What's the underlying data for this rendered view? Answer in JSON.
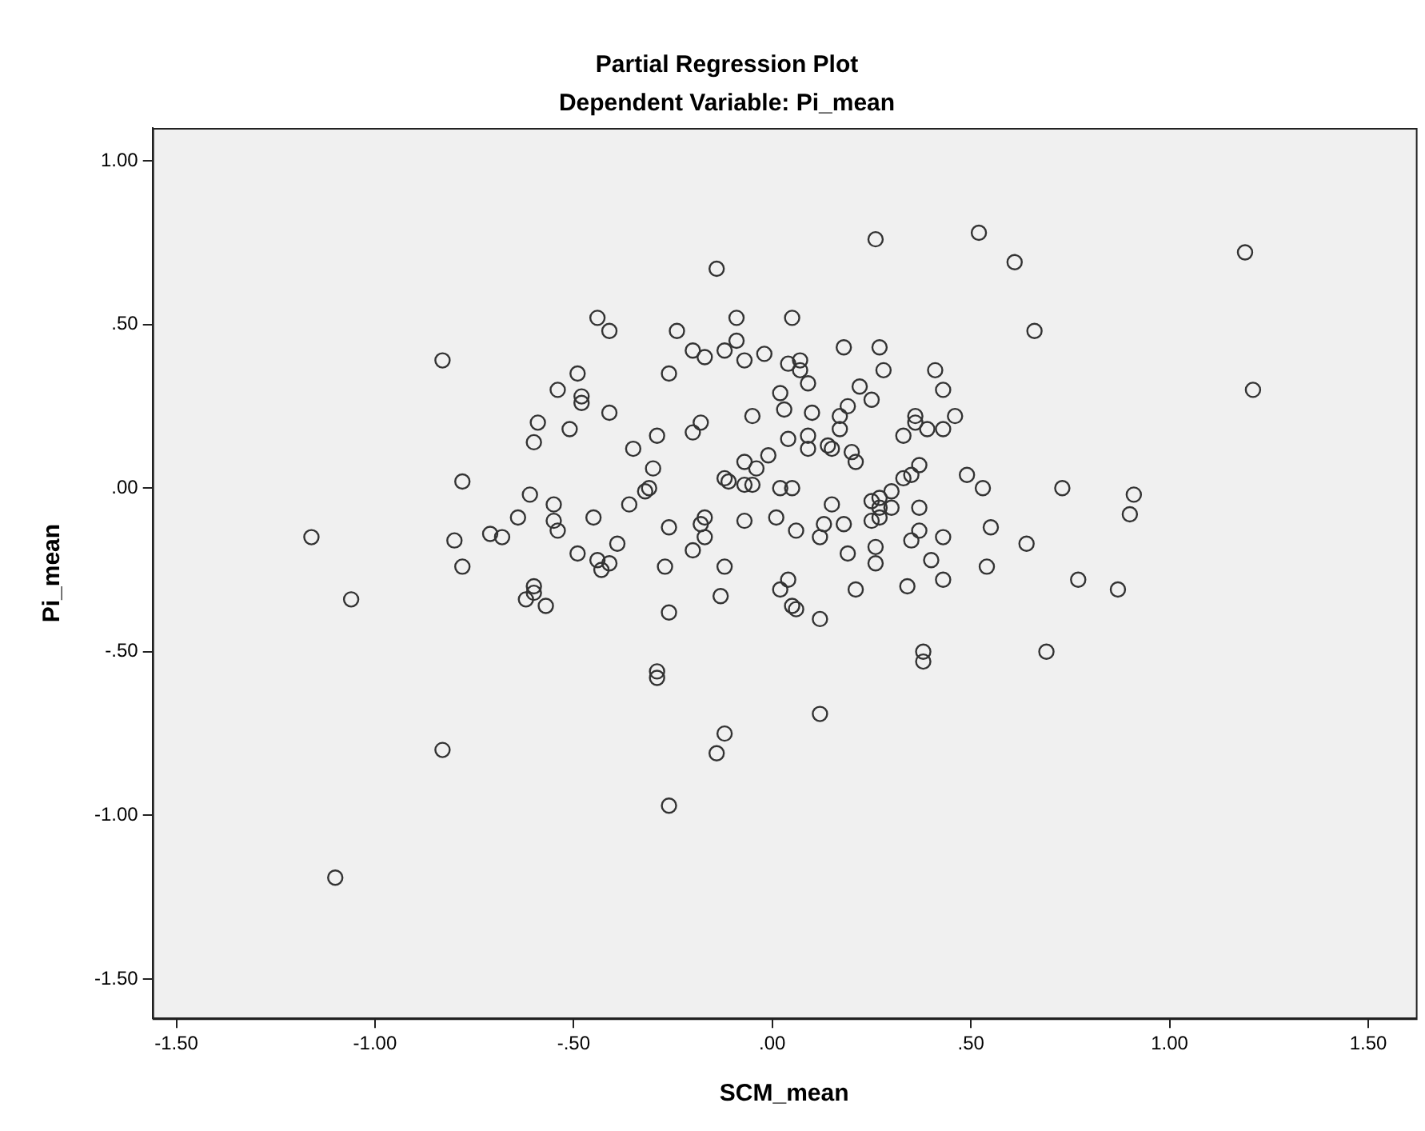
{
  "chart_data": {
    "type": "scatter",
    "title": "Partial Regression Plot",
    "subtitle": "Dependent Variable: Pi_mean",
    "xlabel": "SCM_mean",
    "ylabel": "Pi_mean",
    "marker": "circle",
    "grid": false,
    "legend": false,
    "xlim": [
      -1.56,
      1.62
    ],
    "ylim": [
      -1.62,
      1.1
    ],
    "xticks": [
      {
        "value": -1.5,
        "label": "-1.50"
      },
      {
        "value": -1,
        "label": "-1.00"
      },
      {
        "value": -0.5,
        "label": "-.50"
      },
      {
        "value": 0,
        "label": ".00"
      },
      {
        "value": 0.5,
        "label": ".50"
      },
      {
        "value": 1,
        "label": "1.00"
      },
      {
        "value": 1.5,
        "label": "1.50"
      }
    ],
    "yticks": [
      {
        "value": -1.5,
        "label": "-1.50"
      },
      {
        "value": -1,
        "label": "-1.00"
      },
      {
        "value": -0.5,
        "label": "-.50"
      },
      {
        "value": 0,
        "label": ".00"
      },
      {
        "value": 0.5,
        "label": ".50"
      },
      {
        "value": 1,
        "label": "1.00"
      }
    ],
    "series": [
      {
        "color": "#333333",
        "x": [
          -0.44,
          -0.41,
          -0.83,
          -0.49,
          -0.54,
          -0.48,
          -0.48,
          -0.41,
          -0.59,
          -0.51,
          -0.6,
          -0.78,
          -0.61,
          -0.55,
          -0.64,
          -0.55,
          -0.54,
          -0.45,
          -0.71,
          -0.68,
          -1.16,
          -0.8,
          -0.49,
          -0.44,
          -0.43,
          -0.78,
          -0.6,
          0.26,
          0.52,
          -0.14,
          0.61,
          0.66,
          -0.24,
          -0.09,
          0.05,
          -0.09,
          -0.2,
          -0.17,
          -0.12,
          -0.07,
          -0.02,
          0.04,
          0.07,
          0.07,
          0.09,
          0.18,
          0.27,
          0.28,
          0.41,
          0.43,
          -0.26,
          0.22,
          0.25,
          0.02,
          0.03,
          0.1,
          -0.05,
          0.19,
          0.17,
          0.17,
          0.14,
          0.15,
          0.09,
          0.09,
          0.04,
          0.2,
          0.21,
          0.36,
          0.36,
          0.33,
          0.39,
          0.43,
          0.46,
          -0.18,
          -0.2,
          -0.29,
          -0.35,
          -0.3,
          -0.31,
          -0.32,
          -0.36,
          -0.39,
          -0.41,
          -0.27,
          -0.26,
          -0.2,
          -0.18,
          -0.17,
          -0.17,
          -0.12,
          -0.07,
          -0.04,
          -0.01,
          -0.12,
          -0.11,
          -0.07,
          -0.05,
          0.02,
          0.05,
          -0.07,
          0.01,
          0.06,
          0.04,
          0.12,
          0.13,
          0.18,
          0.15,
          0.19,
          0.26,
          0.26,
          0.25,
          0.27,
          0.27,
          0.3,
          0.33,
          0.35,
          0.37,
          0.3,
          0.25,
          0.27,
          0.37,
          0.37,
          0.35,
          0.43,
          0.4,
          0.43,
          0.49,
          0.53,
          0.55,
          0.54,
          0.64,
          0.73,
          0.34,
          0.21,
          1.19,
          1.21,
          0.91,
          0.9,
          0.77,
          0.87,
          -1.06,
          -0.6,
          -0.62,
          -0.57,
          -0.26,
          -0.13,
          -0.29,
          -0.29,
          -0.83,
          -0.12,
          -0.14,
          -0.26,
          -1.1,
          0.02,
          0.06,
          0.05,
          0.12,
          0.38,
          0.38,
          0.69,
          0.12
        ],
        "values": [
          0.52,
          0.48,
          0.39,
          0.35,
          0.3,
          0.28,
          0.26,
          0.23,
          0.2,
          0.18,
          0.14,
          0.02,
          -0.02,
          -0.05,
          -0.09,
          -0.1,
          -0.13,
          -0.09,
          -0.14,
          -0.15,
          -0.15,
          -0.16,
          -0.2,
          -0.22,
          -0.25,
          -0.24,
          -0.3,
          0.76,
          0.78,
          0.67,
          0.69,
          0.48,
          0.48,
          0.52,
          0.52,
          0.45,
          0.42,
          0.4,
          0.42,
          0.39,
          0.41,
          0.38,
          0.39,
          0.36,
          0.32,
          0.43,
          0.43,
          0.36,
          0.36,
          0.3,
          0.35,
          0.31,
          0.27,
          0.29,
          0.24,
          0.23,
          0.22,
          0.25,
          0.22,
          0.18,
          0.13,
          0.12,
          0.16,
          0.12,
          0.15,
          0.11,
          0.08,
          0.22,
          0.2,
          0.16,
          0.18,
          0.18,
          0.22,
          0.2,
          0.17,
          0.16,
          0.12,
          0.06,
          0,
          -0.01,
          -0.05,
          -0.17,
          -0.23,
          -0.24,
          -0.12,
          -0.19,
          -0.11,
          -0.09,
          -0.15,
          -0.24,
          0.08,
          0.06,
          0.1,
          0.03,
          0.02,
          0.01,
          0.01,
          0,
          0,
          -0.1,
          -0.09,
          -0.13,
          -0.28,
          -0.15,
          -0.11,
          -0.11,
          -0.05,
          -0.2,
          -0.18,
          -0.23,
          -0.04,
          -0.03,
          -0.06,
          -0.01,
          0.03,
          0.04,
          0.07,
          -0.06,
          -0.1,
          -0.09,
          -0.06,
          -0.13,
          -0.16,
          -0.15,
          -0.22,
          -0.28,
          0.04,
          0,
          -0.12,
          -0.24,
          -0.17,
          0,
          -0.3,
          -0.31,
          0.72,
          0.3,
          -0.02,
          -0.08,
          -0.28,
          -0.31,
          -0.34,
          -0.32,
          -0.34,
          -0.36,
          -0.38,
          -0.33,
          -0.56,
          -0.58,
          -0.8,
          -0.75,
          -0.81,
          -0.97,
          -1.19,
          -0.31,
          -0.37,
          -0.36,
          -0.4,
          -0.5,
          -0.53,
          -0.5,
          -0.69
        ]
      }
    ]
  }
}
